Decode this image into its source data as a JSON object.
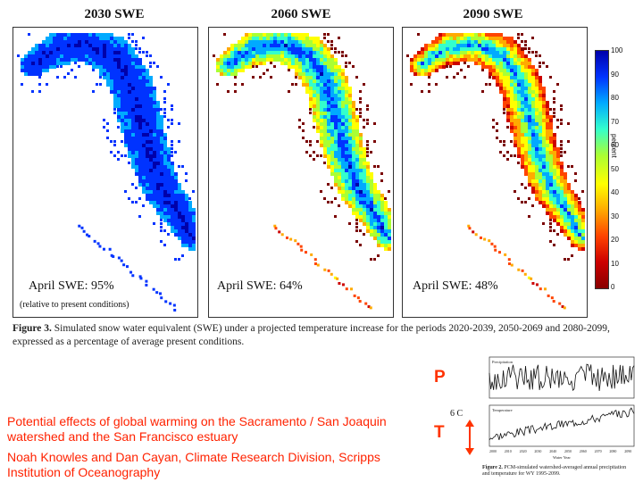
{
  "maps": [
    {
      "title": "2030 SWE",
      "label": "April SWE: 95%",
      "note": "(relative to present conditions)",
      "snow_level": 95
    },
    {
      "title": "2060 SWE",
      "label": "April SWE: 64%",
      "note": "",
      "snow_level": 64
    },
    {
      "title": "2090 SWE",
      "label": "April SWE: 48%",
      "note": "",
      "snow_level": 48
    }
  ],
  "colorbar": {
    "ticks": [
      "100",
      "90",
      "80",
      "70",
      "60",
      "50",
      "40",
      "30",
      "20",
      "10",
      "0"
    ],
    "unit": "percent",
    "colors": [
      "#0000aa",
      "#0033ff",
      "#00aaff",
      "#33ffcc",
      "#aaff33",
      "#ffff00",
      "#ffaa00",
      "#ff4400",
      "#cc0000",
      "#880000"
    ]
  },
  "figure3": {
    "label": "Figure 3.",
    "text": "Simulated snow water equivalent (SWE) under a projected temperature increase for the periods 2020-2039, 2050-2069 and 2080-2099, expressed as a percentage of average present conditions."
  },
  "letters": {
    "p": "P",
    "t": "T",
    "delta": "6 C"
  },
  "credits": {
    "title": "Potential effects of global warming on the Sacramento / San Joaquin watershed and the San Francisco estuary",
    "authors": "Noah Knowles and Dan Cayan, Climate Research Division, Scripps Institution of Oceanography"
  },
  "figure2": {
    "label": "Figure 2.",
    "text": "PCM-simulated watershed-averaged annual precipitation and temperature for WY 1995-2099.",
    "top_panel": "Precipitation",
    "bottom_panel": "Temperature",
    "x_label": "Water Year",
    "x_ticks": [
      "2000",
      "2010",
      "2020",
      "2030",
      "2040",
      "2050",
      "2060",
      "2070",
      "2080",
      "2090"
    ]
  },
  "accent_colors": {
    "red_text": "#ff2200",
    "arrow": "#ff3300"
  }
}
